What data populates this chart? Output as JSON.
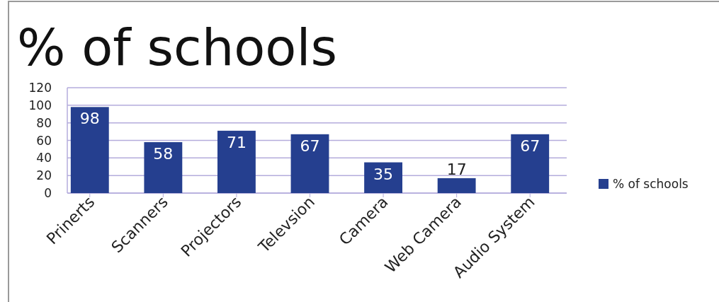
{
  "chart_data": {
    "type": "bar",
    "title": "% of schools",
    "categories": [
      "Prinerts",
      "Scanners",
      "Projectors",
      "Televsion",
      "Camera",
      "Web Camera",
      "Audio System"
    ],
    "series": [
      {
        "name": "% of schools",
        "color": "#253f8f",
        "values": [
          98,
          58,
          71,
          67,
          35,
          17,
          67
        ]
      }
    ],
    "ylim": [
      0,
      120
    ],
    "yticks": [
      0,
      20,
      40,
      60,
      80,
      100,
      120
    ],
    "grid": "y",
    "legend": "right",
    "data_labels": true
  }
}
